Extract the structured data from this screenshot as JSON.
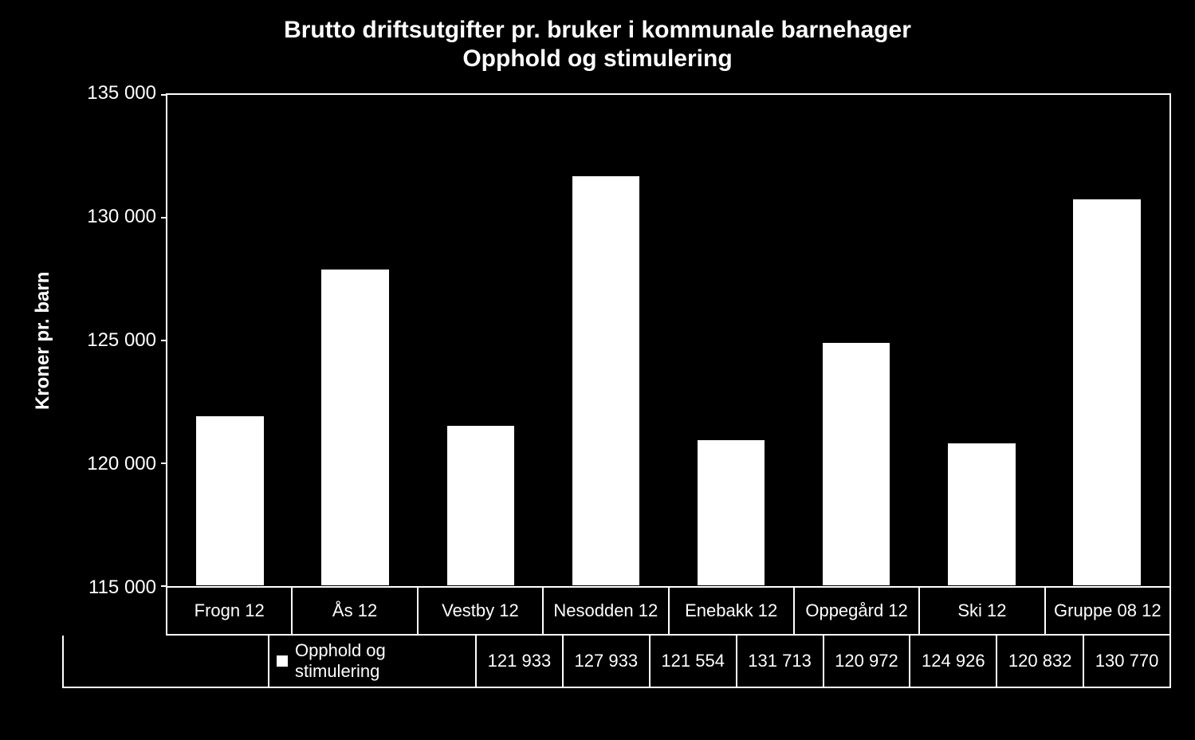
{
  "chart": {
    "type": "bar",
    "title_line1": "Brutto driftsutgifter pr. bruker i kommunale barnehager",
    "title_line2": "Opphold og stimulering",
    "title_fontsize": 30,
    "title_fontweight": "bold",
    "ylabel": "Kroner pr. barn",
    "ylabel_fontsize": 24,
    "ylabel_fontweight": "bold",
    "background_color": "#000000",
    "text_color": "#ffffff",
    "plot_border_color": "#ffffff",
    "bar_color": "#ffffff",
    "bar_border_color": "#000000",
    "bar_width": 0.55,
    "ylim": [
      115000,
      135000
    ],
    "yticks": [
      115000,
      120000,
      125000,
      130000,
      135000
    ],
    "ytick_labels": [
      "115 000",
      "120 000",
      "125 000",
      "130 000",
      "135 000"
    ],
    "categories": [
      "Frogn 12",
      "Ås 12",
      "Vestby 12",
      "Nesodden 12",
      "Enebakk 12",
      "Oppegård 12",
      "Ski 12",
      "Gruppe 08 12"
    ],
    "values": [
      121933,
      127933,
      121554,
      131713,
      120972,
      124926,
      120832,
      130770
    ],
    "value_labels": [
      "121 933",
      "127 933",
      "121 554",
      "131 713",
      "120 972",
      "124 926",
      "120 832",
      "130 770"
    ],
    "series_legend_label": "Opphold og stimulering",
    "legend_swatch_color": "#ffffff",
    "font_family": "Arial, sans-serif"
  }
}
